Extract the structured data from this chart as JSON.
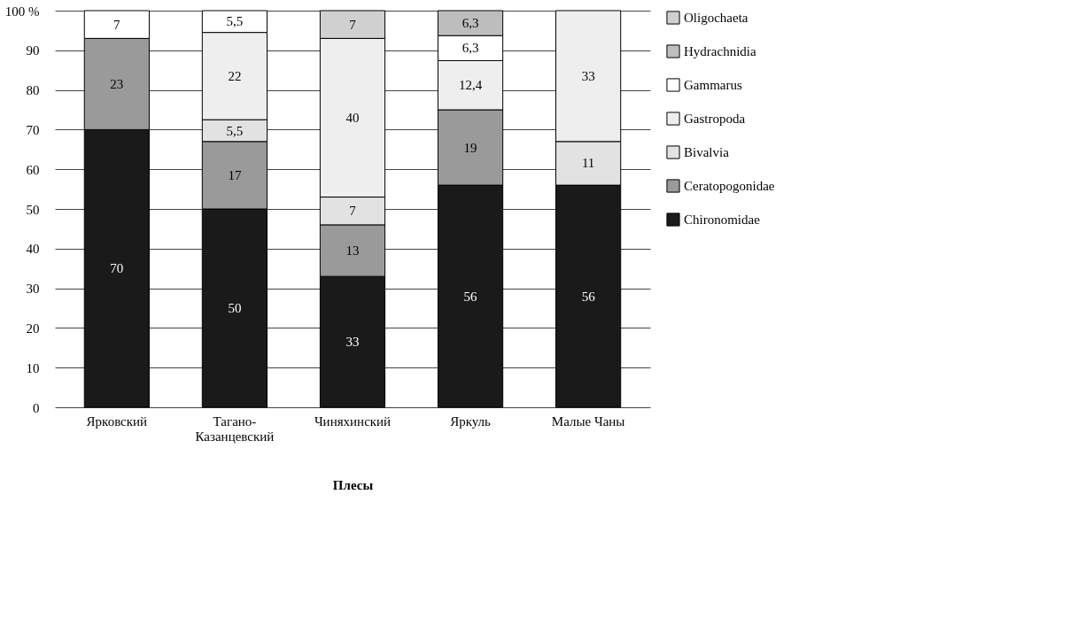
{
  "chart_data": {
    "type": "bar",
    "stacked": true,
    "xlabel": "Плесы",
    "categories": [
      "Ярковский",
      "Тагано-Казанцевский",
      "Чиняхинский",
      "Яркуль",
      "Малые Чаны"
    ],
    "ylim": [
      0,
      100
    ],
    "yticks": [
      0,
      10,
      20,
      30,
      40,
      50,
      60,
      70,
      80,
      90,
      {
        "value": 100,
        "label": "100 %"
      }
    ],
    "grid": "y",
    "legend": "right",
    "series": [
      {
        "name": "Chironomidae",
        "color": "#1a1a1a",
        "values": [
          70,
          50,
          33,
          56,
          56
        ],
        "value_labels": [
          "70",
          "50",
          "33",
          "56",
          "56"
        ]
      },
      {
        "name": "Ceratopogonidae",
        "color": "#9a9a9a",
        "values": [
          23,
          17,
          13,
          19,
          null
        ],
        "value_labels": [
          "23",
          "17",
          "13",
          "19",
          null
        ]
      },
      {
        "name": "Bivalvia",
        "color": "#e2e2e2",
        "values": [
          null,
          5.5,
          7,
          null,
          11
        ],
        "value_labels": [
          null,
          "5,5",
          "7",
          null,
          "11"
        ]
      },
      {
        "name": "Gastropoda",
        "color": "#eeeeee",
        "values": [
          null,
          22,
          40,
          12.4,
          33
        ],
        "value_labels": [
          null,
          "22",
          "40",
          "12,4",
          "33"
        ]
      },
      {
        "name": "Gammarus",
        "color": "#ffffff",
        "values": [
          7,
          5.5,
          null,
          6.3,
          null
        ],
        "value_labels": [
          "7",
          "5,5",
          null,
          "6,3",
          null
        ]
      },
      {
        "name": "Hydrachnidia",
        "color": "#bdbdbd",
        "values": [
          null,
          null,
          null,
          6.3,
          null
        ],
        "value_labels": [
          null,
          null,
          null,
          "6,3",
          null
        ]
      },
      {
        "name": "Oligochaeta",
        "color": "#d0d0d0",
        "values": [
          null,
          null,
          7,
          null,
          null
        ],
        "value_labels": [
          null,
          null,
          "7",
          null,
          null
        ]
      }
    ]
  }
}
